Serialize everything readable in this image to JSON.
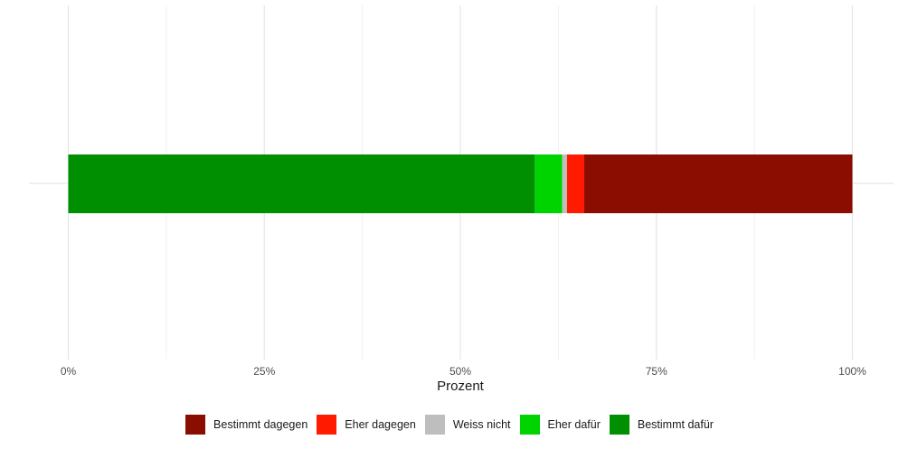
{
  "chart_data": {
    "type": "bar",
    "orientation": "horizontal",
    "stacked": true,
    "categories": [
      ""
    ],
    "series": [
      {
        "name": "Bestimmt dafür",
        "values": [
          59.5
        ],
        "color": "#008f00"
      },
      {
        "name": "Eher dafür",
        "values": [
          3.5
        ],
        "color": "#00d400"
      },
      {
        "name": "Weiss nicht",
        "values": [
          0.6
        ],
        "color": "#bebebe"
      },
      {
        "name": "Eher dagegen",
        "values": [
          2.2
        ],
        "color": "#ff1a00"
      },
      {
        "name": "Bestimmt dagegen",
        "values": [
          34.2
        ],
        "color": "#8b0c00"
      }
    ],
    "xlabel": "Prozent",
    "xlim": [
      0,
      100
    ],
    "x_ticks": [
      "0%",
      "25%",
      "50%",
      "75%",
      "100%"
    ],
    "grid": true,
    "legend_position": "bottom",
    "legend_order": [
      "Bestimmt dagegen",
      "Eher dagegen",
      "Weiss nicht",
      "Eher dafür",
      "Bestimmt dafür"
    ]
  }
}
